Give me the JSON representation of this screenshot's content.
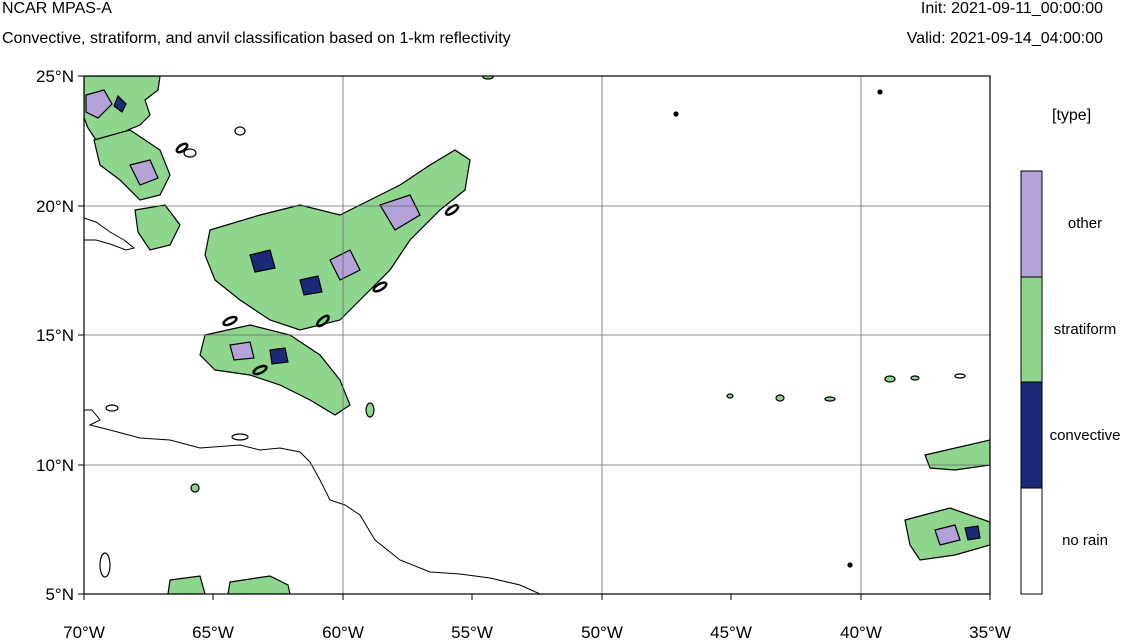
{
  "header": {
    "title": "NCAR MPAS-A",
    "subtitle": "Convective, stratiform, and anvil classification based on 1-km reflectivity",
    "init": "Init: 2021-09-11_00:00:00",
    "valid": "Valid: 2021-09-14_04:00:00"
  },
  "map": {
    "lat_range": [
      5,
      25
    ],
    "lon_range": [
      -70,
      -35
    ],
    "y_ticks": [
      "25°N",
      "20°N",
      "15°N",
      "10°N",
      "5°N"
    ],
    "x_ticks": [
      "70°W",
      "65°W",
      "60°W",
      "55°W",
      "50°W",
      "45°W",
      "40°W",
      "35°W"
    ],
    "gridlines": true
  },
  "legend": {
    "title": "[type]",
    "entries": [
      {
        "label": "other",
        "color": "#b3a3d9"
      },
      {
        "label": "stratiform",
        "color": "#8ed68e"
      },
      {
        "label": "convective",
        "color": "#1a2a78"
      },
      {
        "label": "no rain",
        "color": "#ffffff"
      }
    ]
  }
}
